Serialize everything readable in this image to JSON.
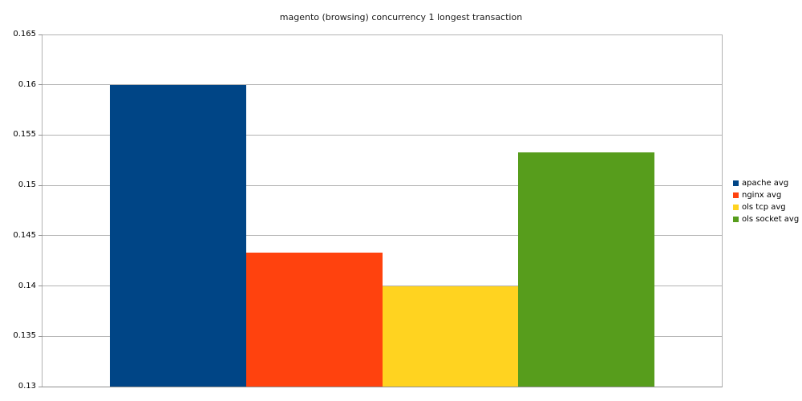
{
  "chart_data": {
    "type": "bar",
    "title": "magento (browsing) concurrency 1 longest transaction",
    "categories": [
      ""
    ],
    "series": [
      {
        "name": "apache avg",
        "value": 0.16,
        "color": "#004586"
      },
      {
        "name": "nginx avg",
        "value": 0.1433,
        "color": "#ff420e"
      },
      {
        "name": "ols tcp avg",
        "value": 0.14,
        "color": "#ffd320"
      },
      {
        "name": "ols socket avg",
        "value": 0.1533,
        "color": "#579d1c"
      }
    ],
    "xlabel": "",
    "ylabel": "",
    "ylim": [
      0.13,
      0.165
    ],
    "yticks": [
      {
        "value": 0.165,
        "label": "0.165"
      },
      {
        "value": 0.16,
        "label": "0.16"
      },
      {
        "value": 0.155,
        "label": "0.155"
      },
      {
        "value": 0.15,
        "label": "0.15"
      },
      {
        "value": 0.145,
        "label": "0.145"
      },
      {
        "value": 0.14,
        "label": "0.14"
      },
      {
        "value": 0.135,
        "label": "0.135"
      },
      {
        "value": 0.13,
        "label": "0.13"
      }
    ],
    "grid": true,
    "legend_position": "right"
  },
  "colors": {
    "background": "#ffffff",
    "gridline": "#b3b3b3",
    "axis": "#8f8f8f",
    "title_text": "#1a1a1a",
    "label_text": "#000000"
  }
}
